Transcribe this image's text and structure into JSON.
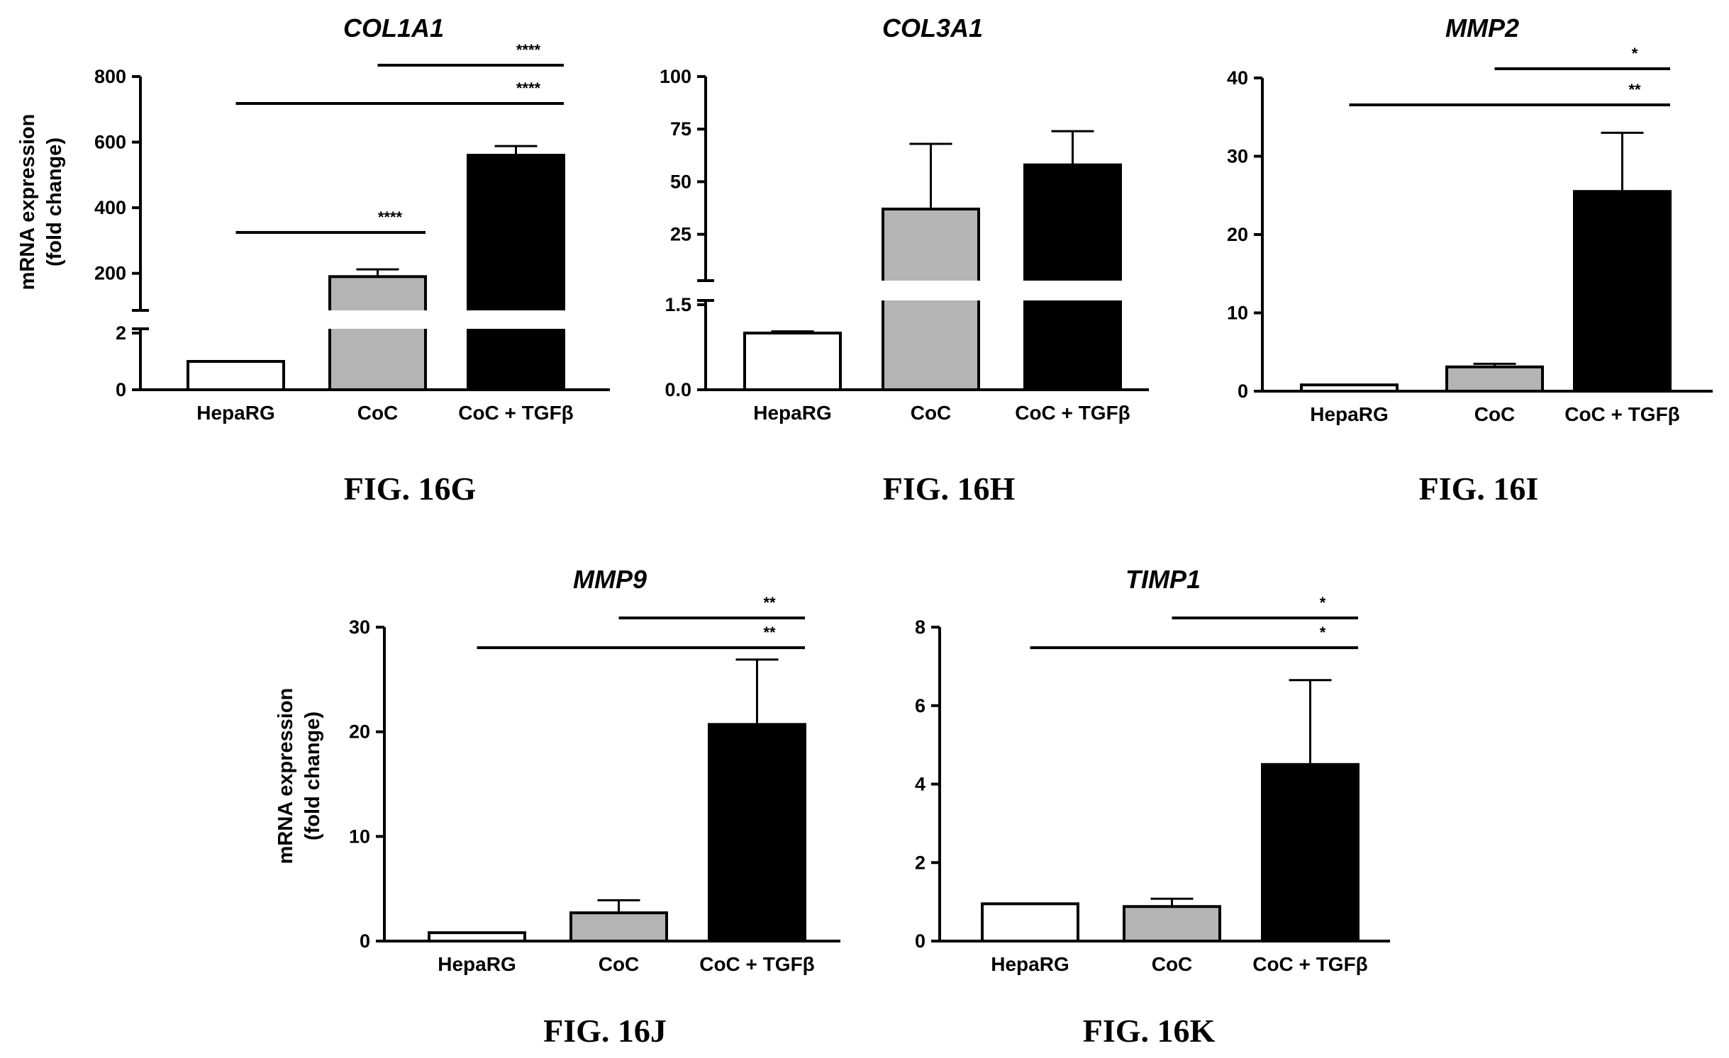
{
  "charts": [
    {
      "id": "G",
      "title": "COL1A1",
      "figure_label": "FIG. 16G",
      "y_label": [
        "mRNA expression",
        "(fold change)"
      ]
    },
    {
      "id": "H",
      "title": "COL3A1",
      "figure_label": "FIG. 16H",
      "y_label": []
    },
    {
      "id": "I",
      "title": "MMP2",
      "figure_label": "FIG. 16I",
      "y_label": []
    },
    {
      "id": "J",
      "title": "MMP9",
      "figure_label": "FIG. 16J",
      "y_label": [
        "mRNA expression",
        "(fold change)"
      ]
    },
    {
      "id": "K",
      "title": "TIMP1",
      "figure_label": "FIG. 16K",
      "y_label": []
    }
  ],
  "colors": {
    "HepaRG": "#ffffff",
    "CoC": "#b4b4b4",
    "CoC + TGFβ": "#000000",
    "axis": "#000000"
  },
  "chart_data": [
    {
      "type": "bar",
      "title": "COL1A1",
      "categories": [
        "HepaRG",
        "CoC",
        "CoC + TGFβ"
      ],
      "values": [
        1,
        190,
        560
      ],
      "errors": [
        0.05,
        22,
        28
      ],
      "y_axis_break": true,
      "segments": [
        {
          "range": [
            0,
            2
          ],
          "ticks": [
            0,
            2
          ]
        },
        {
          "range": [
            100,
            800
          ],
          "ticks": [
            200,
            400,
            600,
            800
          ]
        }
      ],
      "significance": [
        {
          "from": "CoC",
          "to": "CoC + TGFβ",
          "label": "****"
        },
        {
          "from": "HepaRG",
          "to": "CoC + TGFβ",
          "label": "****"
        },
        {
          "from": "HepaRG",
          "to": "CoC",
          "label": "****"
        }
      ]
    },
    {
      "type": "bar",
      "title": "COL3A1",
      "categories": [
        "HepaRG",
        "CoC",
        "CoC + TGFβ"
      ],
      "values": [
        1,
        37,
        58
      ],
      "errors": [
        0.03,
        31,
        16
      ],
      "y_axis_break": true,
      "segments": [
        {
          "range": [
            0,
            1.5
          ],
          "ticks": [
            "0.0",
            "1.5"
          ]
        },
        {
          "range": [
            5,
            100
          ],
          "ticks": [
            25,
            50,
            75,
            100
          ]
        }
      ],
      "significance": []
    },
    {
      "type": "bar",
      "title": "MMP2",
      "categories": [
        "HepaRG",
        "CoC",
        "CoC + TGFβ"
      ],
      "values": [
        0.8,
        3.1,
        25.5
      ],
      "errors": [
        0.1,
        0.4,
        7.5
      ],
      "ylim": [
        0,
        40
      ],
      "ticks": [
        0,
        10,
        20,
        30,
        40
      ],
      "significance": [
        {
          "from": "CoC",
          "to": "CoC + TGFβ",
          "label": "*"
        },
        {
          "from": "HepaRG",
          "to": "CoC + TGFβ",
          "label": "**"
        }
      ]
    },
    {
      "type": "bar",
      "title": "MMP9",
      "categories": [
        "HepaRG",
        "CoC",
        "CoC + TGFβ"
      ],
      "values": [
        0.8,
        2.7,
        20.7
      ],
      "errors": [
        0.05,
        1.2,
        6.2
      ],
      "ylim": [
        0,
        30
      ],
      "ticks": [
        0,
        10,
        20,
        30
      ],
      "significance": [
        {
          "from": "CoC",
          "to": "CoC + TGFβ",
          "label": "**"
        },
        {
          "from": "HepaRG",
          "to": "CoC + TGFβ",
          "label": "**"
        }
      ]
    },
    {
      "type": "bar",
      "title": "TIMP1",
      "categories": [
        "HepaRG",
        "CoC",
        "CoC + TGFβ"
      ],
      "values": [
        0.95,
        0.88,
        4.5
      ],
      "errors": [
        0.02,
        0.2,
        2.15
      ],
      "ylim": [
        0,
        8
      ],
      "ticks": [
        0,
        2,
        4,
        6,
        8
      ],
      "significance": [
        {
          "from": "CoC",
          "to": "CoC + TGFβ",
          "label": "*"
        },
        {
          "from": "HepaRG",
          "to": "CoC + TGFβ",
          "label": "*"
        }
      ]
    }
  ]
}
